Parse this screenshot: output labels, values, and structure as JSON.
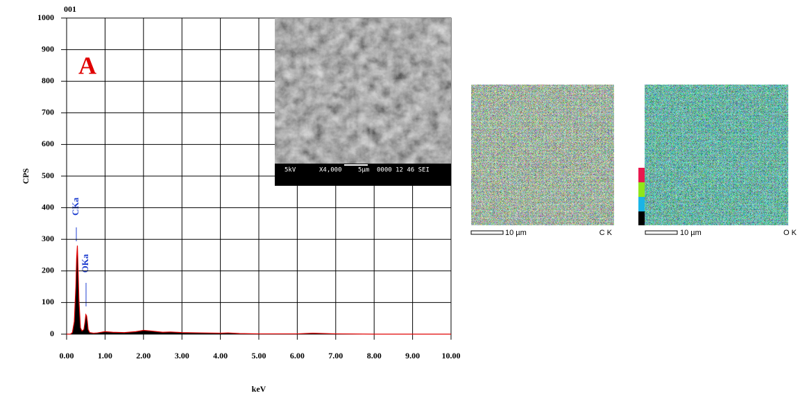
{
  "chart_data": {
    "type": "spectrum",
    "title": "001",
    "ylabel": "CPS",
    "xlabel": "keV",
    "annotations": [
      "A",
      "CKa",
      "OKa"
    ],
    "xlim": [
      0,
      10
    ],
    "ylim": [
      0,
      1000
    ],
    "xticks": [
      {
        "value": 0,
        "label": "0.00"
      },
      {
        "value": 1,
        "label": "1.00"
      },
      {
        "value": 2,
        "label": "2.00"
      },
      {
        "value": 3,
        "label": "3.00"
      },
      {
        "value": 4,
        "label": "4.00"
      },
      {
        "value": 5,
        "label": "5.00"
      },
      {
        "value": 6,
        "label": "6.00"
      },
      {
        "value": 7,
        "label": "7.00"
      },
      {
        "value": 8,
        "label": "8.00"
      },
      {
        "value": 9,
        "label": "9.00"
      },
      {
        "value": 10,
        "label": "10.00"
      }
    ],
    "yticks": [
      0,
      100,
      200,
      300,
      400,
      500,
      600,
      700,
      800,
      900,
      1000
    ],
    "grid": true,
    "x": [
      0,
      0.1,
      0.15,
      0.2,
      0.24,
      0.26,
      0.28,
      0.3,
      0.32,
      0.36,
      0.4,
      0.45,
      0.48,
      0.5,
      0.52,
      0.54,
      0.56,
      0.6,
      0.7,
      0.8,
      1.0,
      1.2,
      1.5,
      1.8,
      2.0,
      2.2,
      2.5,
      2.7,
      3.0,
      3.5,
      4.0,
      4.2,
      4.5,
      5,
      6,
      6.4,
      7,
      8,
      9,
      10
    ],
    "series": [
      {
        "color": "#e00000",
        "fill": "#000000",
        "values": [
          0,
          0,
          5,
          40,
          150,
          240,
          280,
          200,
          110,
          20,
          10,
          15,
          40,
          62,
          58,
          40,
          15,
          5,
          3,
          4,
          8,
          6,
          5,
          8,
          12,
          10,
          6,
          7,
          5,
          4,
          3,
          4,
          2,
          1,
          1,
          3,
          1,
          0,
          0,
          0
        ]
      }
    ]
  },
  "sem_image": {
    "caption": [
      "5kV",
      "X4,000",
      "5µm",
      "0000 12 46 SEI"
    ]
  },
  "maps": [
    {
      "scale": "10 µm",
      "label": "C K"
    },
    {
      "scale": "10 µm",
      "label": "O K"
    }
  ]
}
